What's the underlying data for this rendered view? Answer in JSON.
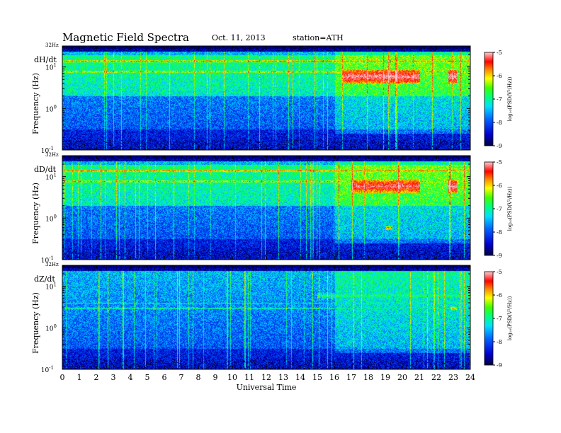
{
  "header": {
    "title": "Magnetic  Field  Spectra",
    "date": "Oct. 11, 2013",
    "station": "station=ATH"
  },
  "colors": {
    "palette": [
      "#3a0060",
      "#00007f",
      "#0000ff",
      "#0070ff",
      "#00d8ff",
      "#00ff80",
      "#40ff00",
      "#ffff00",
      "#ff8000",
      "#ff0000",
      "#ff8080",
      "#ffffff"
    ]
  },
  "chart_data": {
    "type": "heatmap",
    "title": "Magnetic  Field  Spectra",
    "xlabel": "Universal Time",
    "x_ticks": [
      "0",
      "1",
      "2",
      "3",
      "4",
      "5",
      "6",
      "7",
      "8",
      "9",
      "10",
      "11",
      "12",
      "13",
      "14",
      "15",
      "16",
      "17",
      "18",
      "19",
      "20",
      "21",
      "22",
      "23",
      "24"
    ],
    "xlim": [
      0,
      24
    ],
    "ylabel": "Frequency  (Hz)",
    "y_scale": "log",
    "y_top_label": "32Hz",
    "y_ticks": [
      {
        "base": "10",
        "exp": "1",
        "value": 10
      },
      {
        "base": "10",
        "exp": "0",
        "value": 1
      },
      {
        "base": "10",
        "exp": "-1",
        "value": 0.1
      }
    ],
    "colorbar": {
      "label": "log₁₀(PSD(V²/Hz))",
      "ticks": [
        "-5",
        "-6",
        "-7",
        "-8",
        "-9"
      ],
      "range": [
        -9,
        -5
      ]
    },
    "panels": [
      {
        "name": "dH/dt",
        "features": [
          {
            "label": "narrowband line",
            "freq_hz": 7.8,
            "t_start": 0,
            "t_end": 24,
            "level": -6.8
          },
          {
            "label": "narrowband line",
            "freq_hz": 14.0,
            "t_start": 0,
            "t_end": 24,
            "level": -6.6
          },
          {
            "label": "strong band",
            "freq_hz": 6.0,
            "t_start": 16.5,
            "t_end": 21,
            "level": -5.6
          },
          {
            "label": "strong band",
            "freq_hz": 6.0,
            "t_start": 22.7,
            "t_end": 23.2,
            "level": -5.5
          }
        ]
      },
      {
        "name": "dD/dt",
        "features": [
          {
            "label": "narrowband line",
            "freq_hz": 7.8,
            "t_start": 0,
            "t_end": 24,
            "level": -6.8
          },
          {
            "label": "narrowband line",
            "freq_hz": 14.0,
            "t_start": 0,
            "t_end": 24,
            "level": -6.6
          },
          {
            "label": "strong band",
            "freq_hz": 6.0,
            "t_start": 17,
            "t_end": 21,
            "level": -5.8
          },
          {
            "label": "strong band",
            "freq_hz": 6.0,
            "t_start": 22.7,
            "t_end": 23.2,
            "level": -5.6
          },
          {
            "label": "spot",
            "freq_hz": 0.6,
            "t_start": 19,
            "t_end": 19.4,
            "level": -6.0
          }
        ]
      },
      {
        "name": "dZ/dt",
        "features": [
          {
            "label": "narrowband line",
            "freq_hz": 3.0,
            "t_start": 0,
            "t_end": 24,
            "level": -7.2
          },
          {
            "label": "narrowband line",
            "freq_hz": 4.0,
            "t_start": 0,
            "t_end": 24,
            "level": -7.4
          },
          {
            "label": "band",
            "freq_hz": 6.0,
            "t_start": 15,
            "t_end": 24,
            "level": -7.2
          },
          {
            "label": "spot",
            "freq_hz": 3.0,
            "t_start": 22.8,
            "t_end": 23.2,
            "level": -6.2
          }
        ]
      }
    ]
  }
}
